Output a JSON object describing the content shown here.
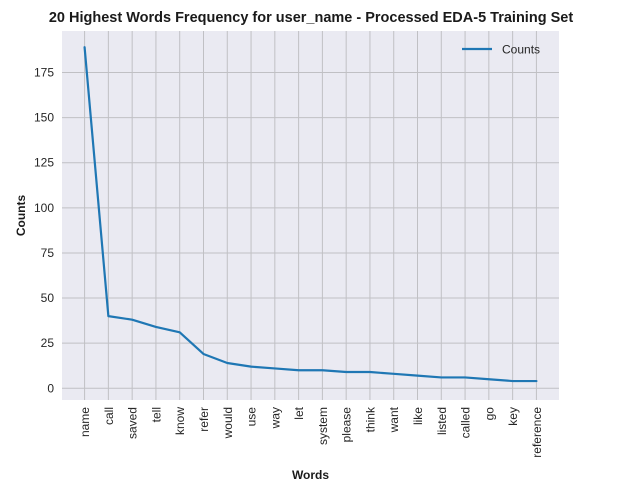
{
  "chart_data": {
    "type": "line",
    "title": "20 Highest Words Frequency for user_name - Processed EDA-5 Training Set",
    "xlabel": "Words",
    "ylabel": "Counts",
    "categories": [
      "name",
      "call",
      "saved",
      "tell",
      "know",
      "refer",
      "would",
      "use",
      "way",
      "let",
      "system",
      "please",
      "think",
      "want",
      "like",
      "listed",
      "called",
      "go",
      "key",
      "reference"
    ],
    "series": [
      {
        "name": "Counts",
        "values": [
          189,
          40,
          38,
          34,
          31,
          19,
          14,
          12,
          11,
          10,
          10,
          9,
          9,
          8,
          7,
          6,
          6,
          5,
          4,
          4
        ],
        "color": "#1f77b4"
      }
    ],
    "ylim": [
      -6.5,
      198
    ],
    "yticks": [
      0,
      25,
      50,
      75,
      100,
      125,
      150,
      175
    ],
    "grid": true,
    "legend": "top-right",
    "colors": {
      "plot_background": "#eaeaf2",
      "grid": "#c0c0c4",
      "line": "#1f77b4"
    }
  }
}
